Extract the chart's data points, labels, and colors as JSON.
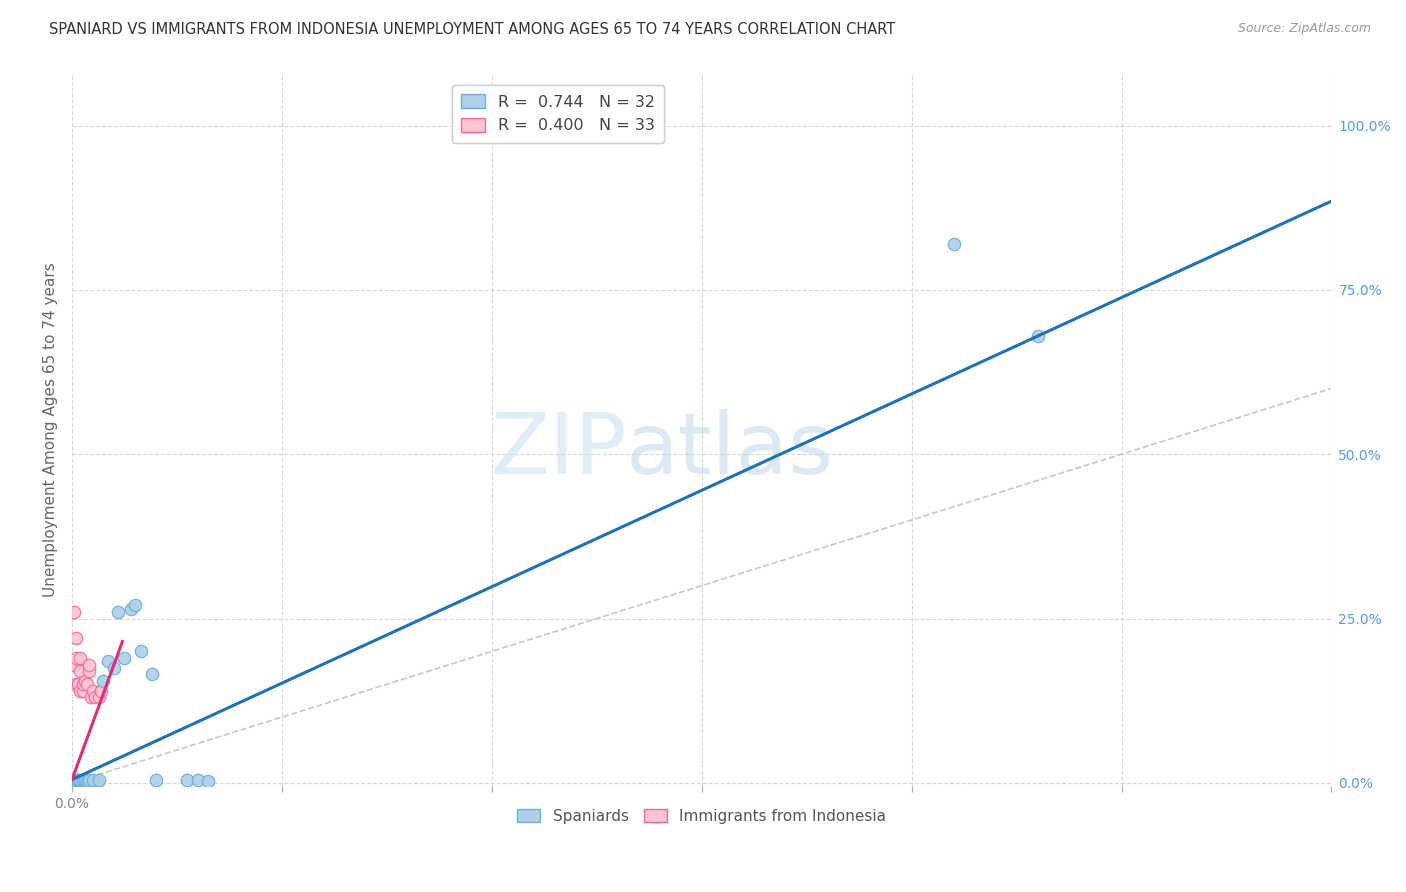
{
  "title": "SPANIARD VS IMMIGRANTS FROM INDONESIA UNEMPLOYMENT AMONG AGES 65 TO 74 YEARS CORRELATION CHART",
  "source_text": "Source: ZipAtlas.com",
  "ylabel": "Unemployment Among Ages 65 to 74 years",
  "xlim": [
    0,
    0.6
  ],
  "ylim": [
    -0.005,
    1.08
  ],
  "xtick_positions": [
    0.0,
    0.1,
    0.2,
    0.3,
    0.4,
    0.5,
    0.6
  ],
  "xtick_edge_labels": {
    "0.0": "0.0%"
  },
  "yticks_right": [
    0.0,
    0.25,
    0.5,
    0.75,
    1.0
  ],
  "yticklabels_right": [
    "0.0%",
    "25.0%",
    "50.0%",
    "75.0%",
    "100.0%"
  ],
  "legend_r1": "R =  0.744",
  "legend_n1": "N = 32",
  "legend_r2": "R =  0.400",
  "legend_n2": "N = 33",
  "sp_x": [
    0.001,
    0.001,
    0.001,
    0.002,
    0.002,
    0.003,
    0.003,
    0.003,
    0.004,
    0.004,
    0.005,
    0.005,
    0.006,
    0.007,
    0.008,
    0.01,
    0.013,
    0.015,
    0.017,
    0.02,
    0.022,
    0.025,
    0.028,
    0.03,
    0.033,
    0.038,
    0.04,
    0.055,
    0.06,
    0.065,
    0.42,
    0.46
  ],
  "sp_y": [
    0.001,
    0.002,
    0.003,
    0.002,
    0.003,
    0.003,
    0.004,
    0.005,
    0.003,
    0.005,
    0.004,
    0.005,
    0.004,
    0.003,
    0.005,
    0.005,
    0.005,
    0.155,
    0.185,
    0.175,
    0.26,
    0.19,
    0.265,
    0.27,
    0.2,
    0.165,
    0.005,
    0.005,
    0.005,
    0.003,
    0.82,
    0.68
  ],
  "id_x": [
    0.001,
    0.001,
    0.001,
    0.001,
    0.002,
    0.002,
    0.002,
    0.002,
    0.002,
    0.003,
    0.003,
    0.003,
    0.003,
    0.004,
    0.004,
    0.004,
    0.004,
    0.005,
    0.005,
    0.005,
    0.005,
    0.006,
    0.006,
    0.007,
    0.007,
    0.008,
    0.008,
    0.009,
    0.01,
    0.011,
    0.012,
    0.013,
    0.014
  ],
  "id_y": [
    0.001,
    0.002,
    0.18,
    0.26,
    0.001,
    0.19,
    0.22,
    0.15,
    0.003,
    0.001,
    0.002,
    0.15,
    0.003,
    0.001,
    0.17,
    0.19,
    0.14,
    0.001,
    0.14,
    0.003,
    0.15,
    0.001,
    0.155,
    0.001,
    0.15,
    0.17,
    0.18,
    0.13,
    0.14,
    0.13,
    0.001,
    0.13,
    0.14
  ],
  "blue_line_x": [
    0.0,
    0.6
  ],
  "blue_line_y": [
    0.005,
    0.885
  ],
  "pink_line_x": [
    0.0,
    0.024
  ],
  "pink_line_y": [
    0.005,
    0.215
  ],
  "ref_line_x": [
    0.0,
    0.6
  ],
  "ref_line_y": [
    0.0,
    0.6
  ],
  "dot_size": 80,
  "blue_fill": "#aecfe8",
  "blue_edge": "#6baed6",
  "pink_fill": "#fcc5d0",
  "pink_edge": "#f768a1",
  "blue_line_color": "#2171b5",
  "pink_line_color": "#de2d7a",
  "ref_line_color": "#c8c8c8",
  "watermark_zip": "ZIP",
  "watermark_atlas": "atlas",
  "background_color": "#ffffff",
  "grid_color": "#d8d8d8",
  "title_fontsize": 10.5,
  "label_fontsize": 11,
  "tick_fontsize": 10,
  "tick_color": "#888888",
  "right_tick_color": "#5599ee"
}
